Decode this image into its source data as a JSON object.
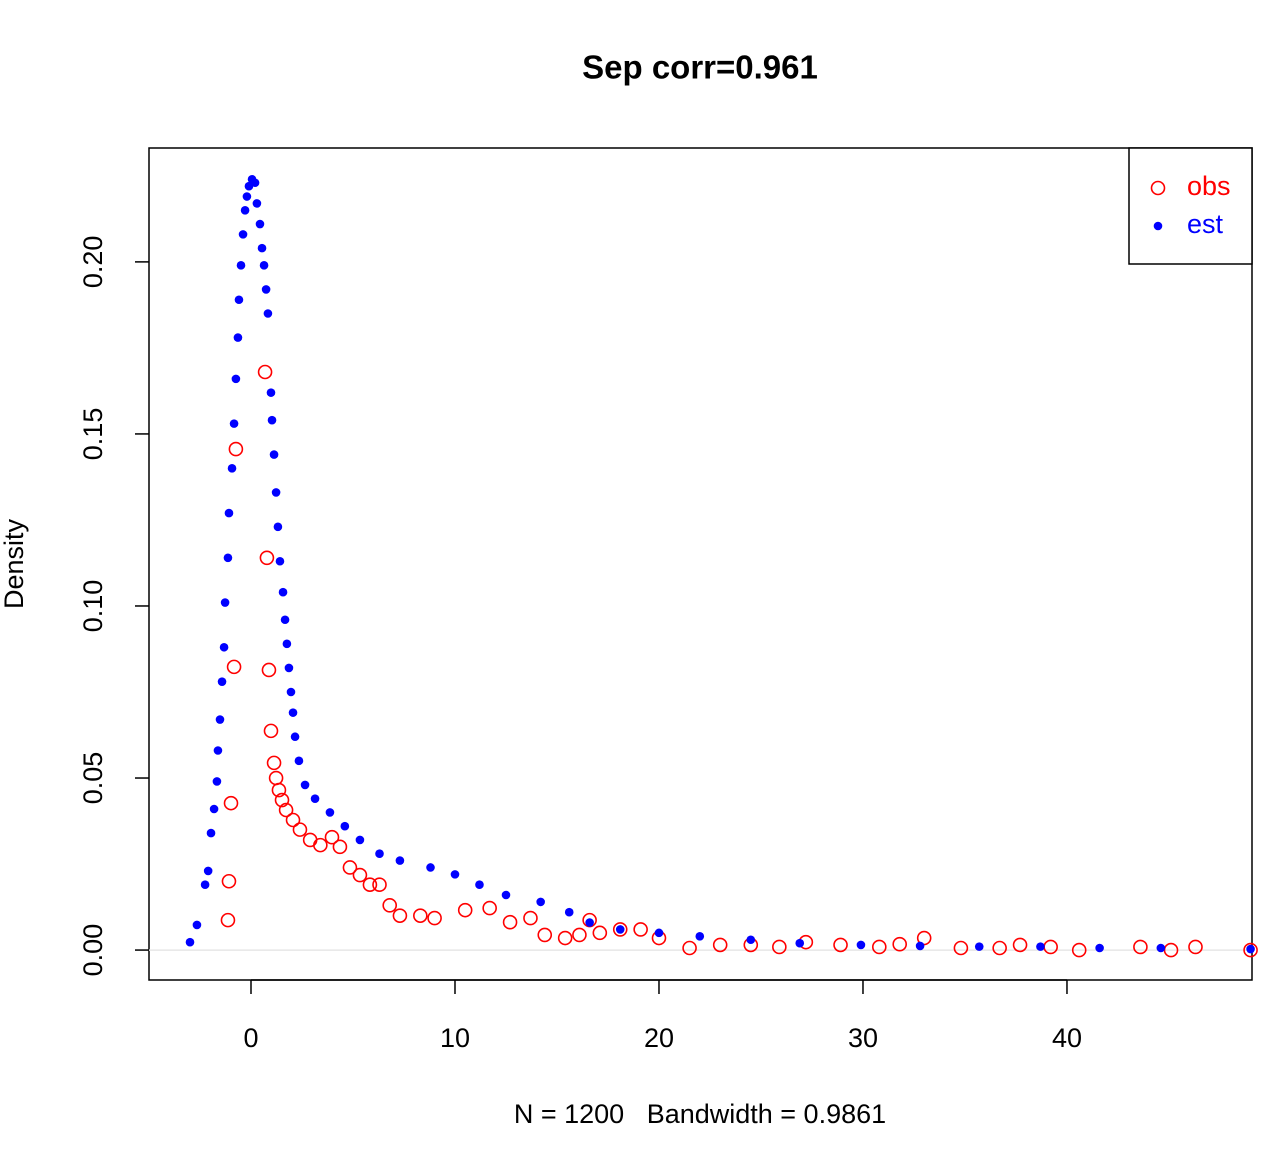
{
  "chart_data": {
    "type": "scatter",
    "title": "Sep corr=0.961",
    "x_label": "N = 1200   Bandwidth = 0.9861",
    "y_label": "Density",
    "xlim": [
      -5,
      49.07
    ],
    "ylim": [
      -0.0087,
      0.2331
    ],
    "xticks": [
      0,
      10,
      20,
      30,
      40
    ],
    "yticks": [
      {
        "value": 0,
        "label": "0.00"
      },
      {
        "value": 0.05,
        "label": "0.05"
      },
      {
        "value": 0.1,
        "label": "0.10"
      },
      {
        "value": 0.15,
        "label": "0.15"
      },
      {
        "value": 0.2,
        "label": "0.20"
      }
    ],
    "grid": false,
    "legend": "topright",
    "series": [
      {
        "name": "obs",
        "color": "#ff0000",
        "marker": "open-circle",
        "x": [
          -1.13,
          -1.08,
          -0.98,
          -0.83,
          -0.74,
          0.69,
          0.78,
          0.88,
          0.98,
          1.13,
          1.23,
          1.37,
          1.52,
          1.72,
          2.06,
          2.4,
          2.9,
          3.4,
          3.97,
          4.36,
          4.85,
          5.34,
          5.83,
          6.3,
          6.8,
          7.3,
          8.3,
          9.0,
          10.5,
          11.7,
          12.7,
          13.7,
          14.4,
          15.4,
          16.1,
          16.6,
          17.1,
          18.1,
          19.1,
          20,
          21.5,
          23,
          24.5,
          25.9,
          27.2,
          28.9,
          30.8,
          31.8,
          33.0,
          34.8,
          36.7,
          37.7,
          39.2,
          40.6,
          43.6,
          45.1,
          46.3,
          49
        ],
        "values": [
          0.0087,
          0.02,
          0.0427,
          0.0823,
          0.1456,
          0.168,
          0.114,
          0.0814,
          0.0637,
          0.0544,
          0.05,
          0.0465,
          0.0436,
          0.0407,
          0.0378,
          0.035,
          0.032,
          0.0305,
          0.0328,
          0.03,
          0.024,
          0.0218,
          0.019,
          0.019,
          0.013,
          0.01,
          0.01,
          0.0093,
          0.0116,
          0.0122,
          0.0081,
          0.0093,
          0.0044,
          0.0035,
          0.0044,
          0.0087,
          0.005,
          0.006,
          0.006,
          0.0035,
          0.0006,
          0.0015,
          0.0015,
          0.0009,
          0.0023,
          0.0015,
          0.0009,
          0.0017,
          0.0035,
          0.0006,
          0.0006,
          0.0015,
          0.0009,
          0,
          0.0009,
          0,
          0.0009,
          0
        ]
      },
      {
        "name": "est",
        "color": "#0000ff",
        "marker": "filled-dot",
        "x": [
          -2.99,
          -2.65,
          -2.25,
          -2.1,
          -1.96,
          -1.81,
          -1.67,
          -1.62,
          -1.52,
          -1.42,
          -1.32,
          -1.27,
          -1.13,
          -1.08,
          -0.93,
          -0.83,
          -0.74,
          -0.64,
          -0.59,
          -0.49,
          -0.39,
          -0.29,
          -0.2,
          -0.1,
          0.05,
          0.2,
          0.29,
          0.44,
          0.54,
          0.64,
          0.74,
          0.83,
          0.98,
          1.03,
          1.13,
          1.23,
          1.32,
          1.42,
          1.57,
          1.67,
          1.76,
          1.86,
          1.96,
          2.06,
          2.16,
          2.35,
          2.65,
          3.14,
          3.87,
          4.6,
          5.34,
          6.3,
          7.3,
          8.8,
          10,
          11.2,
          12.5,
          14.2,
          15.6,
          16.6,
          18.1,
          20,
          22,
          24.5,
          26.9,
          29.9,
          32.8,
          35.7,
          38.7,
          41.6,
          44.6,
          49
        ],
        "values": [
          0.0023,
          0.0073,
          0.019,
          0.023,
          0.034,
          0.041,
          0.049,
          0.058,
          0.067,
          0.078,
          0.088,
          0.101,
          0.114,
          0.127,
          0.14,
          0.153,
          0.166,
          0.178,
          0.189,
          0.199,
          0.208,
          0.215,
          0.219,
          0.222,
          0.224,
          0.223,
          0.217,
          0.211,
          0.204,
          0.199,
          0.192,
          0.185,
          0.162,
          0.154,
          0.144,
          0.133,
          0.123,
          0.113,
          0.104,
          0.096,
          0.089,
          0.082,
          0.075,
          0.069,
          0.062,
          0.055,
          0.048,
          0.044,
          0.04,
          0.036,
          0.032,
          0.028,
          0.026,
          0.024,
          0.022,
          0.019,
          0.016,
          0.014,
          0.011,
          0.008,
          0.006,
          0.005,
          0.004,
          0.003,
          0.002,
          0.0015,
          0.0012,
          0.001,
          0.001,
          0.0006,
          0.0006,
          0.0003
        ]
      }
    ]
  }
}
